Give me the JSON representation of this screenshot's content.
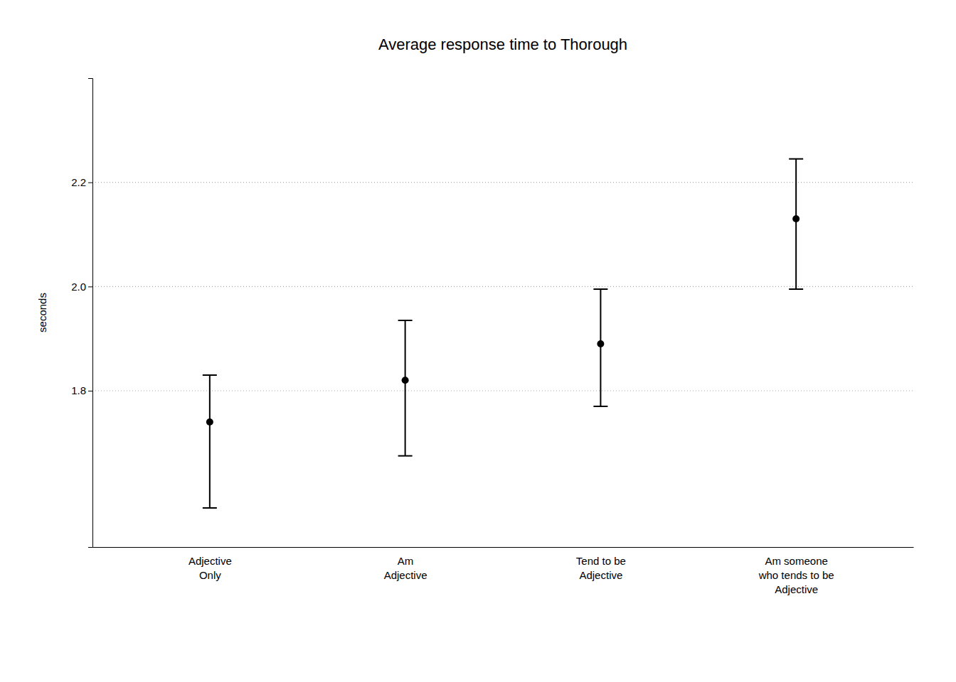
{
  "chart_data": {
    "type": "errorbar",
    "title": "Average response time to Thorough",
    "ylabel": "seconds",
    "categories": [
      "Adjective\nOnly",
      "Am\nAdjective",
      "Tend to be\nAdjective",
      "Am someone\nwho tends to be\nAdjective"
    ],
    "values": [
      1.74,
      1.82,
      1.89,
      2.13
    ],
    "lower_errors": [
      0.165,
      0.145,
      0.12,
      0.135
    ],
    "upper_errors": [
      0.09,
      0.115,
      0.105,
      0.115
    ],
    "ylim": [
      1.5,
      2.4
    ],
    "yticks": [
      1.8,
      {
        "value": 2.0,
        "label": "2.0"
      },
      2.2
    ],
    "color": "#000000",
    "grid": true
  }
}
